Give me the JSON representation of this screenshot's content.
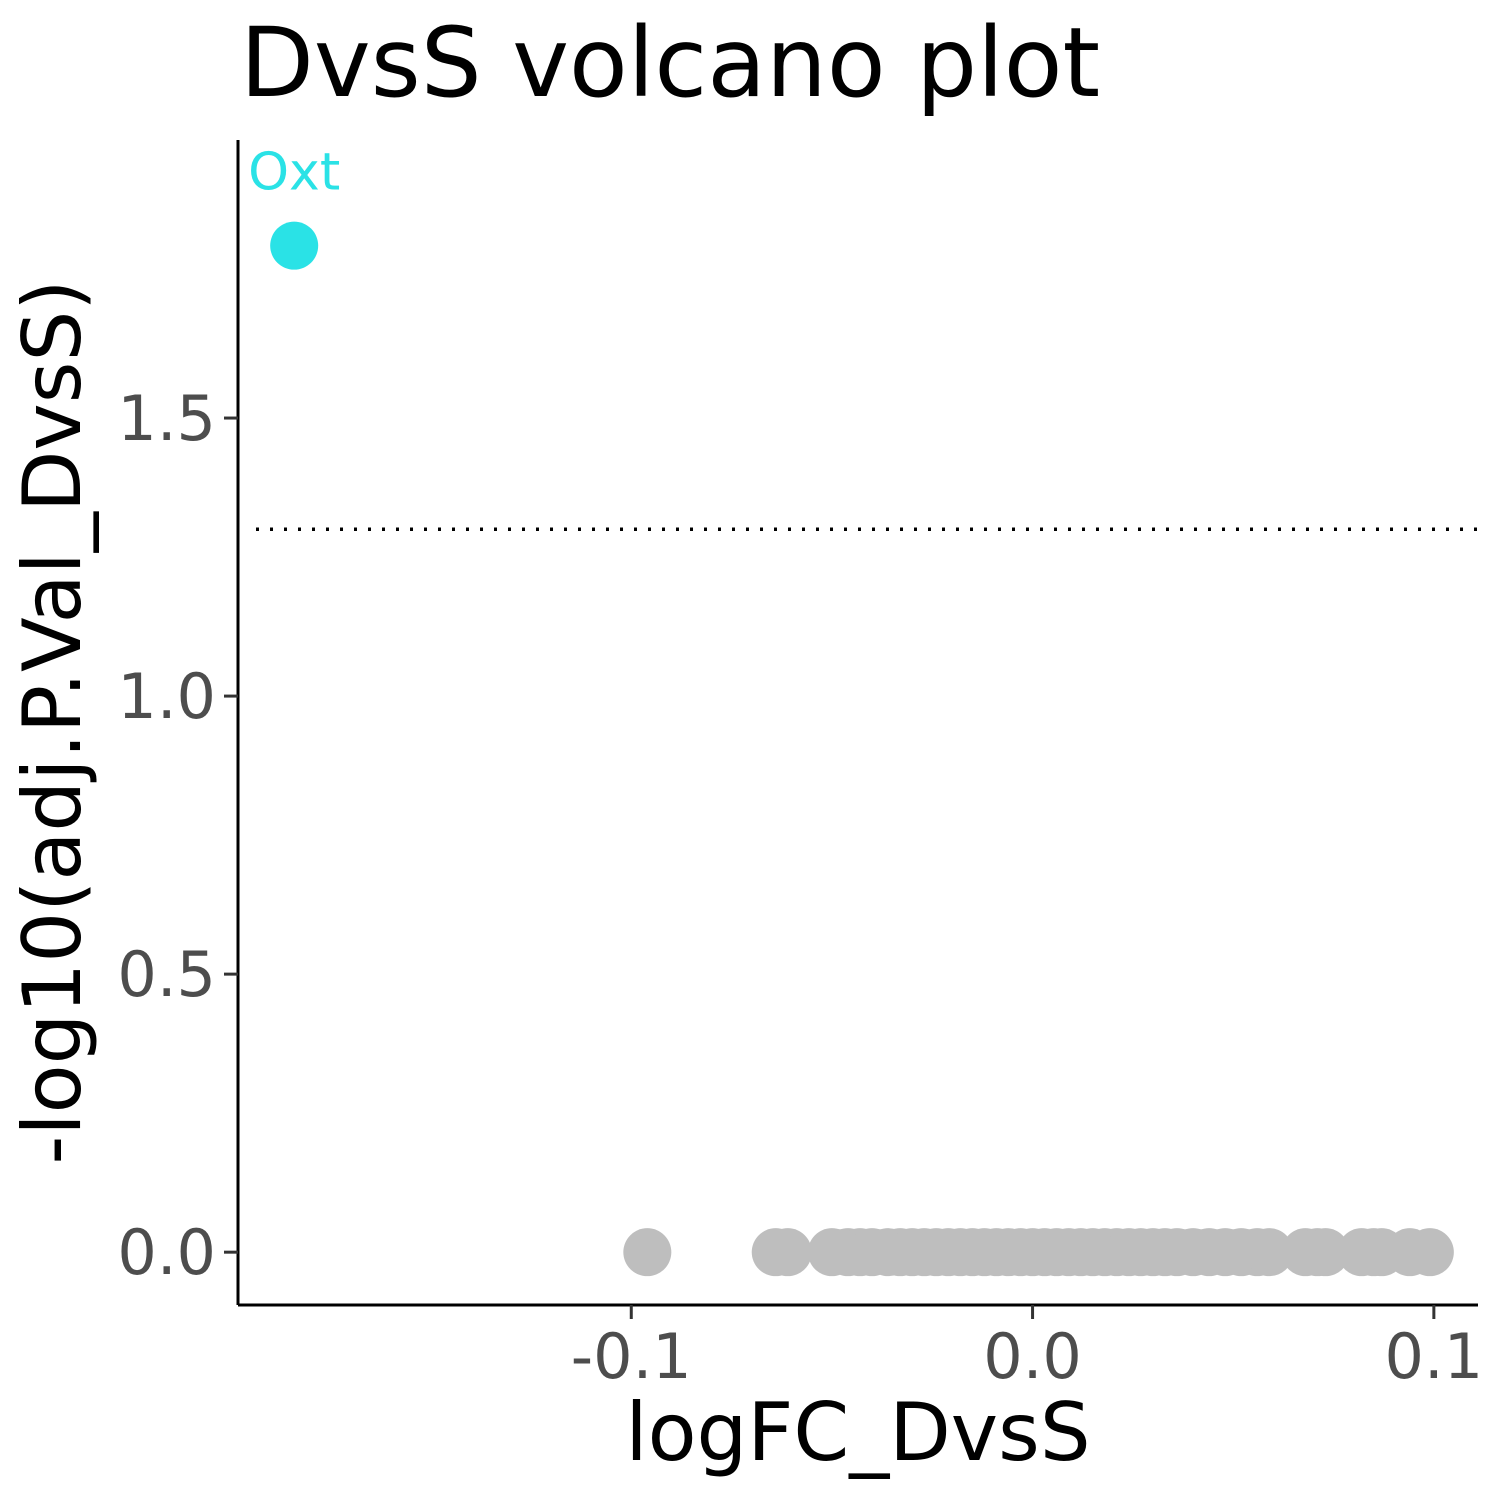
{
  "chart_data": {
    "type": "scatter",
    "title": "DvsS volcano plot",
    "xlabel": "logFC_DvsS",
    "ylabel": "-log10(adj.P.Val_DvsS)",
    "xlim": [
      -0.198,
      0.111
    ],
    "ylim": [
      -0.095,
      2.0
    ],
    "x_ticks": [
      -0.1,
      0.0,
      0.1
    ],
    "x_tick_labels": [
      "-0.1",
      "0.0",
      "0.1"
    ],
    "y_ticks": [
      0.0,
      0.5,
      1.0,
      1.5
    ],
    "y_tick_labels": [
      "0.0",
      "0.5",
      "1.0",
      "1.5"
    ],
    "threshold_y": 1.3,
    "grid": false,
    "colors": {
      "significant": "#2ae2e6",
      "not_significant": "#bebebe"
    },
    "series": [
      {
        "status": "not_significant",
        "points": [
          {
            "x": -0.096,
            "y": 0.0
          },
          {
            "x": -0.064,
            "y": 0.0
          },
          {
            "x": -0.061,
            "y": 0.0
          },
          {
            "x": -0.05,
            "y": 0.0
          },
          {
            "x": -0.046,
            "y": 0.0
          },
          {
            "x": -0.043,
            "y": 0.0
          },
          {
            "x": -0.04,
            "y": 0.0
          },
          {
            "x": -0.036,
            "y": 0.0
          },
          {
            "x": -0.033,
            "y": 0.0
          },
          {
            "x": -0.03,
            "y": 0.0
          },
          {
            "x": -0.027,
            "y": 0.0
          },
          {
            "x": -0.024,
            "y": 0.0
          },
          {
            "x": -0.021,
            "y": 0.0
          },
          {
            "x": -0.018,
            "y": 0.0
          },
          {
            "x": -0.015,
            "y": 0.0
          },
          {
            "x": -0.012,
            "y": 0.0
          },
          {
            "x": -0.009,
            "y": 0.0
          },
          {
            "x": -0.006,
            "y": 0.0
          },
          {
            "x": -0.003,
            "y": 0.0
          },
          {
            "x": 0.0,
            "y": 0.0
          },
          {
            "x": 0.003,
            "y": 0.0
          },
          {
            "x": 0.006,
            "y": 0.0
          },
          {
            "x": 0.009,
            "y": 0.0
          },
          {
            "x": 0.012,
            "y": 0.0
          },
          {
            "x": 0.015,
            "y": 0.0
          },
          {
            "x": 0.018,
            "y": 0.0
          },
          {
            "x": 0.021,
            "y": 0.0
          },
          {
            "x": 0.024,
            "y": 0.0
          },
          {
            "x": 0.027,
            "y": 0.0
          },
          {
            "x": 0.03,
            "y": 0.0
          },
          {
            "x": 0.033,
            "y": 0.0
          },
          {
            "x": 0.036,
            "y": 0.0
          },
          {
            "x": 0.04,
            "y": 0.0
          },
          {
            "x": 0.044,
            "y": 0.0
          },
          {
            "x": 0.048,
            "y": 0.0
          },
          {
            "x": 0.052,
            "y": 0.0
          },
          {
            "x": 0.056,
            "y": 0.0
          },
          {
            "x": 0.059,
            "y": 0.0
          },
          {
            "x": 0.068,
            "y": 0.0
          },
          {
            "x": 0.071,
            "y": 0.0
          },
          {
            "x": 0.073,
            "y": 0.0
          },
          {
            "x": 0.082,
            "y": 0.0
          },
          {
            "x": 0.085,
            "y": 0.0
          },
          {
            "x": 0.087,
            "y": 0.0
          },
          {
            "x": 0.094,
            "y": 0.0
          },
          {
            "x": 0.099,
            "y": 0.0
          }
        ]
      },
      {
        "status": "significant",
        "points": [
          {
            "x": -0.184,
            "y": 1.81,
            "label": "Oxt"
          }
        ]
      }
    ]
  }
}
